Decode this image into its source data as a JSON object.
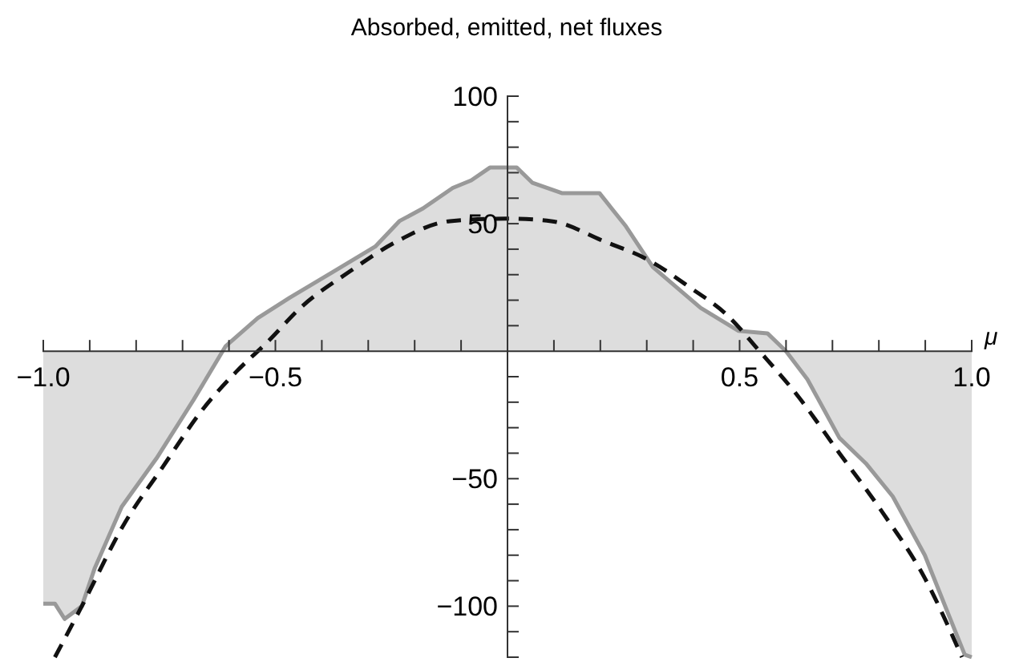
{
  "chart_data": {
    "type": "area",
    "title": "Absorbed, emitted, net fluxes",
    "xlabel": "μ",
    "xlim": [
      -1,
      1
    ],
    "ylim": [
      -120,
      100
    ],
    "xticks": [
      {
        "value": -1.0,
        "label": "−1.0"
      },
      {
        "value": -0.9,
        "label": null
      },
      {
        "value": -0.8,
        "label": null
      },
      {
        "value": -0.7,
        "label": null
      },
      {
        "value": -0.6,
        "label": null
      },
      {
        "value": -0.5,
        "label": "−0.5"
      },
      {
        "value": -0.4,
        "label": null
      },
      {
        "value": -0.3,
        "label": null
      },
      {
        "value": -0.2,
        "label": null
      },
      {
        "value": -0.1,
        "label": null
      },
      {
        "value": 0,
        "label": null
      },
      {
        "value": 0.1,
        "label": null
      },
      {
        "value": 0.2,
        "label": null
      },
      {
        "value": 0.3,
        "label": null
      },
      {
        "value": 0.4,
        "label": null
      },
      {
        "value": 0.5,
        "label": "0.5"
      },
      {
        "value": 0.6,
        "label": null
      },
      {
        "value": 0.7,
        "label": null
      },
      {
        "value": 0.8,
        "label": null
      },
      {
        "value": 0.9,
        "label": null
      },
      {
        "value": 1.0,
        "label": "1.0"
      }
    ],
    "yticks": [
      100,
      {
        "value": 90,
        "label": null
      },
      {
        "value": 80,
        "label": null
      },
      {
        "value": 70,
        "label": null
      },
      {
        "value": 60,
        "label": null
      },
      50,
      {
        "value": 40,
        "label": null
      },
      {
        "value": 30,
        "label": null
      },
      {
        "value": 20,
        "label": null
      },
      {
        "value": 10,
        "label": null
      },
      {
        "value": -10,
        "label": null
      },
      {
        "value": -20,
        "label": null
      },
      {
        "value": -30,
        "label": null
      },
      {
        "value": -40,
        "label": null
      },
      {
        "value": -50,
        "label": "−50"
      },
      {
        "value": -60,
        "label": null
      },
      {
        "value": -70,
        "label": null
      },
      {
        "value": -80,
        "label": null
      },
      {
        "value": -90,
        "label": null
      },
      {
        "value": -100,
        "label": "−100"
      },
      {
        "value": -110,
        "label": null
      },
      {
        "value": -120,
        "label": null
      }
    ],
    "grid": false,
    "series": [
      {
        "color": "#999999",
        "line_style": "solid",
        "x": [
          -1.0,
          -0.975,
          -0.954,
          -0.917,
          -0.889,
          -0.831,
          -0.756,
          -0.676,
          -0.607,
          -0.538,
          -0.469,
          -0.377,
          -0.285,
          -0.233,
          -0.182,
          -0.118,
          -0.078,
          -0.038,
          0.0,
          0.02,
          0.054,
          0.117,
          0.198,
          0.255,
          0.313,
          0.416,
          0.497,
          0.56,
          0.6,
          0.646,
          0.715,
          0.772,
          0.83,
          0.899,
          0.945,
          0.985,
          1.0
        ],
        "values": [
          -99,
          -99,
          -105,
          -100,
          -85,
          -61,
          -42,
          -19,
          2,
          13,
          21,
          31,
          41,
          51,
          56,
          64,
          67,
          72,
          72,
          72,
          66,
          62,
          62,
          49,
          33,
          17,
          8,
          7,
          0,
          -11,
          -34,
          -44,
          -57,
          -80,
          -101,
          -119,
          -120
        ]
      },
      {
        "type": "line",
        "color": "#111111",
        "line_style": "dashed",
        "x": [
          -0.975,
          -0.917,
          -0.825,
          -0.745,
          -0.653,
          -0.584,
          -0.515,
          -0.446,
          -0.342,
          -0.239,
          -0.124,
          0.0,
          0.094,
          0.209,
          0.301,
          0.393,
          0.474,
          0.543,
          0.623,
          0.715,
          0.807,
          0.899,
          0.979
        ],
        "values": [
          -120,
          -100,
          -67.5,
          -46,
          -22,
          -8,
          4,
          17,
          31,
          43,
          51,
          52,
          51,
          43,
          36,
          25,
          14,
          0,
          -17,
          -40,
          -63,
          -89,
          -120
        ]
      }
    ]
  }
}
